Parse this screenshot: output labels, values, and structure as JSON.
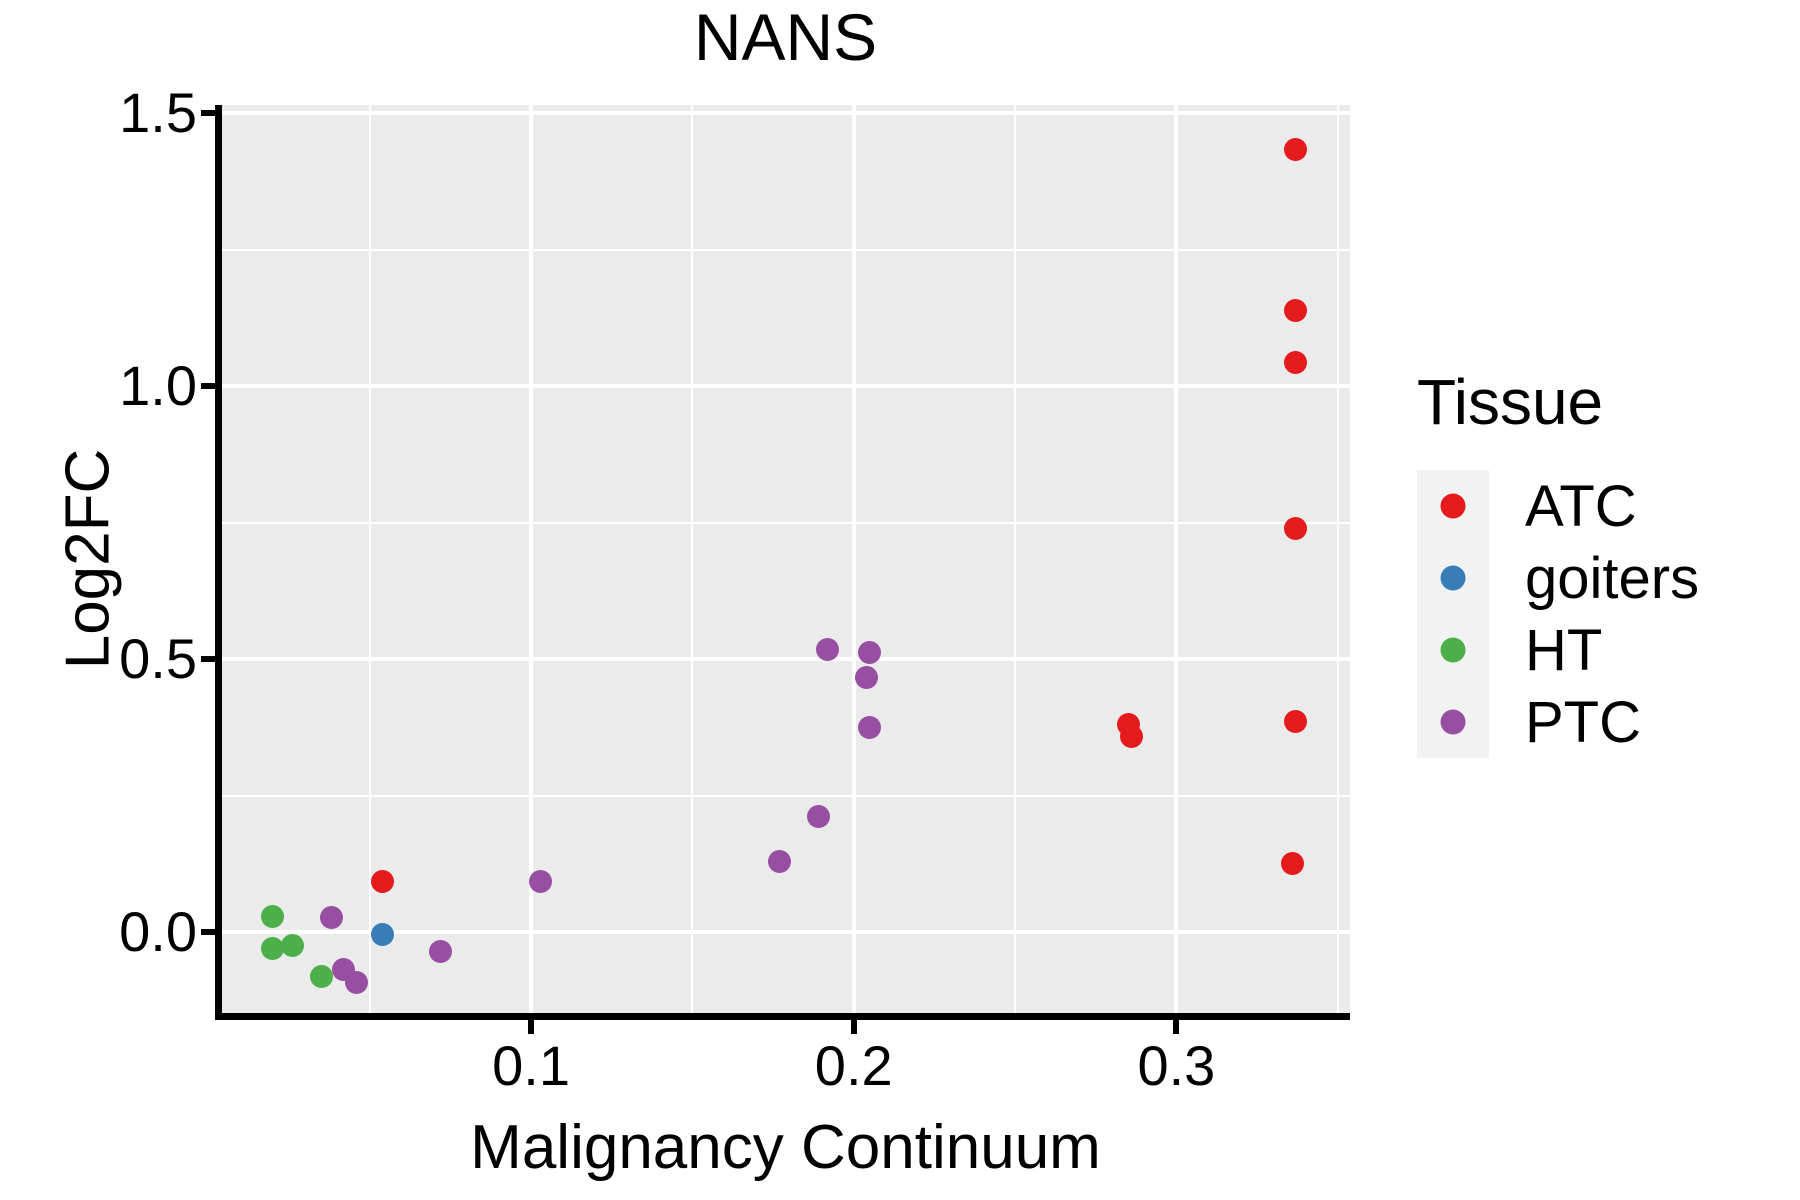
{
  "chart_data": {
    "type": "scatter",
    "title": "NANS",
    "xlabel": "Malignancy Continuum",
    "ylabel": "Log2FC",
    "legend_title": "Tissue",
    "legend_position": "right",
    "grid": true,
    "x_domain": [
      0.0039,
      0.3538
    ],
    "y_domain": [
      -0.148,
      1.515
    ],
    "x_ticks": [
      0.1,
      0.2,
      0.3
    ],
    "x_tick_labels": [
      "0.1",
      "0.2",
      "0.3"
    ],
    "y_ticks": [
      0.0,
      0.5,
      1.0,
      1.5
    ],
    "y_tick_labels": [
      "0.0",
      "0.5",
      "1.0",
      "1.5"
    ],
    "x_minor_ticks": [
      0.05,
      0.15,
      0.25,
      0.35
    ],
    "y_minor_ticks": [
      0.25,
      0.75,
      1.25
    ],
    "series": [
      {
        "name": "ATC",
        "color": "#E41A1C",
        "points": [
          [
            0.337,
            1.434
          ],
          [
            0.337,
            1.139
          ],
          [
            0.337,
            1.044
          ],
          [
            0.337,
            0.74
          ],
          [
            0.337,
            0.385
          ],
          [
            0.336,
            0.125
          ],
          [
            0.285,
            0.38
          ],
          [
            0.286,
            0.358
          ],
          [
            0.054,
            0.092
          ]
        ]
      },
      {
        "name": "goiters",
        "color": "#377EB8",
        "points": [
          [
            0.054,
            -0.004
          ]
        ]
      },
      {
        "name": "HT",
        "color": "#4DAF4A",
        "points": [
          [
            0.02,
            0.029
          ],
          [
            0.02,
            -0.029
          ],
          [
            0.026,
            -0.024
          ],
          [
            0.035,
            -0.082
          ]
        ]
      },
      {
        "name": "PTC",
        "color": "#984EA3",
        "points": [
          [
            0.038,
            0.026
          ],
          [
            0.042,
            -0.068
          ],
          [
            0.046,
            -0.092
          ],
          [
            0.072,
            -0.035
          ],
          [
            0.103,
            0.092
          ],
          [
            0.177,
            0.13
          ],
          [
            0.189,
            0.211
          ],
          [
            0.192,
            0.518
          ],
          [
            0.204,
            0.467
          ],
          [
            0.205,
            0.513
          ],
          [
            0.205,
            0.375
          ]
        ]
      }
    ],
    "colors": {
      "panel_bg": "#EBEBEB",
      "grid_major": "#FFFFFF",
      "grid_minor": "#FFFFFF",
      "axis": "#000000",
      "text": "#000000",
      "legend_key_bg": "#F2F2F2"
    }
  }
}
